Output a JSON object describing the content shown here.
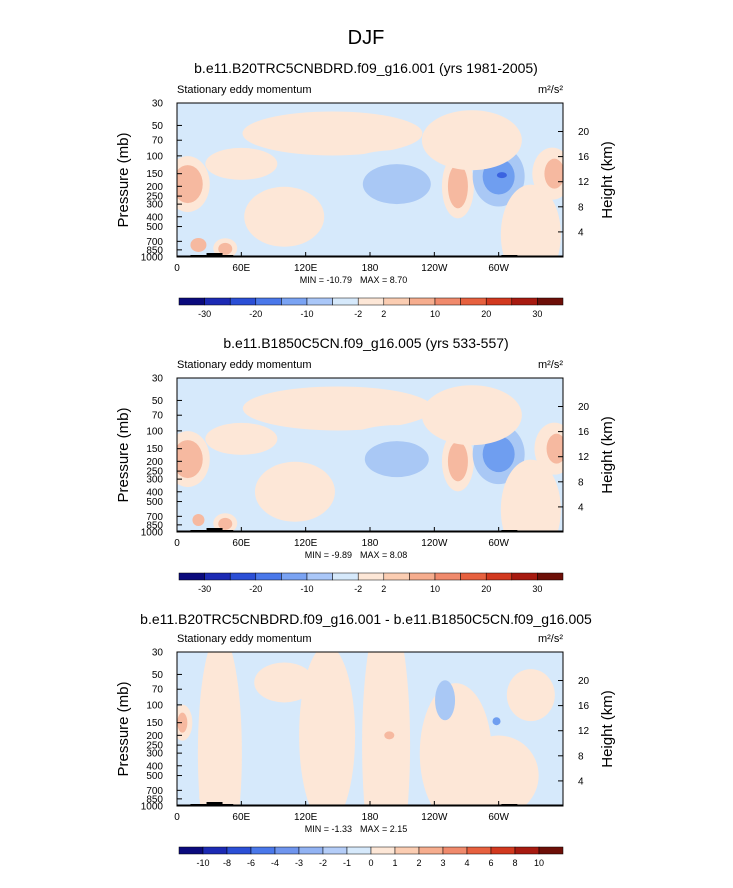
{
  "page": {
    "title": "DJF"
  },
  "colors": {
    "background": "#d6e9fb",
    "neg_light": "#d6e9fb",
    "pos_light": "#fde7d7",
    "neg_mid": "#a9c8f5",
    "neg_strong": "#6f9ef0",
    "neg_dark": "#3b63e0",
    "pos_mid": "#f6b9a0",
    "pos_strong": "#f08a6c",
    "topography": "#000000"
  },
  "chart_data": [
    {
      "type": "heatmap",
      "title": "b.e11.B20TRC5CNBDRD.f09_g16.001 (yrs 1981-2005)",
      "left_label": "Stationary eddy momentum",
      "units": "m²/s²",
      "ylabel": "Pressure (mb)",
      "ylabel_right": "Height (km)",
      "x_ticks": [
        "0",
        "60E",
        "120E",
        "180",
        "120W",
        "60W"
      ],
      "x_tick_lon": [
        0,
        60,
        120,
        180,
        240,
        300
      ],
      "xlim": [
        0,
        360
      ],
      "y_ticks": [
        "30",
        "50",
        "70",
        "100",
        "150",
        "200",
        "250",
        "300",
        "400",
        "500",
        "700",
        "850",
        "1000"
      ],
      "y_tick_values": [
        30,
        50,
        70,
        100,
        150,
        200,
        250,
        300,
        400,
        500,
        700,
        850,
        1000
      ],
      "ylim": [
        1000,
        30
      ],
      "log_scale": true,
      "height_ticks": [
        "20",
        "16",
        "12",
        "8",
        "4"
      ],
      "height_values": [
        20,
        16,
        12,
        8,
        4
      ],
      "stats": {
        "min": "MIN = -10.79",
        "max": "MAX =  8.70"
      },
      "colorbar": {
        "levels": [
          "-30",
          "-20",
          "-10",
          "-2",
          "2",
          "10",
          "20",
          "30"
        ],
        "colors": [
          "#0b0a7d",
          "#1c2ab4",
          "#2b4fd6",
          "#4a78ea",
          "#7aa3f3",
          "#aac7f8",
          "#d6e9fb",
          "#fde7d7",
          "#fbcdb2",
          "#f6ad8e",
          "#f08a6c",
          "#e7613f",
          "#d2391f",
          "#a71a10",
          "#6d0f08"
        ]
      }
    },
    {
      "type": "heatmap",
      "title": "b.e11.B1850C5CN.f09_g16.005 (yrs 533-557)",
      "left_label": "Stationary eddy momentum",
      "units": "m²/s²",
      "ylabel": "Pressure (mb)",
      "ylabel_right": "Height (km)",
      "x_ticks": [
        "0",
        "60E",
        "120E",
        "180",
        "120W",
        "60W"
      ],
      "x_tick_lon": [
        0,
        60,
        120,
        180,
        240,
        300
      ],
      "xlim": [
        0,
        360
      ],
      "y_ticks": [
        "30",
        "50",
        "70",
        "100",
        "150",
        "200",
        "250",
        "300",
        "400",
        "500",
        "700",
        "850",
        "1000"
      ],
      "y_tick_values": [
        30,
        50,
        70,
        100,
        150,
        200,
        250,
        300,
        400,
        500,
        700,
        850,
        1000
      ],
      "ylim": [
        1000,
        30
      ],
      "log_scale": true,
      "height_ticks": [
        "20",
        "16",
        "12",
        "8",
        "4"
      ],
      "height_values": [
        20,
        16,
        12,
        8,
        4
      ],
      "stats": {
        "min": "MIN = -9.89",
        "max": "MAX =  8.08"
      },
      "colorbar": {
        "levels": [
          "-30",
          "-20",
          "-10",
          "-2",
          "2",
          "10",
          "20",
          "30"
        ],
        "colors": [
          "#0b0a7d",
          "#1c2ab4",
          "#2b4fd6",
          "#4a78ea",
          "#7aa3f3",
          "#aac7f8",
          "#d6e9fb",
          "#fde7d7",
          "#fbcdb2",
          "#f6ad8e",
          "#f08a6c",
          "#e7613f",
          "#d2391f",
          "#a71a10",
          "#6d0f08"
        ]
      }
    },
    {
      "type": "heatmap",
      "title": "b.e11.B20TRC5CNBDRD.f09_g16.001 - b.e11.B1850C5CN.f09_g16.005",
      "left_label": "Stationary eddy momentum",
      "units": "m²/s²",
      "ylabel": "Pressure (mb)",
      "ylabel_right": "Height (km)",
      "x_ticks": [
        "0",
        "60E",
        "120E",
        "180",
        "120W",
        "60W"
      ],
      "x_tick_lon": [
        0,
        60,
        120,
        180,
        240,
        300
      ],
      "xlim": [
        0,
        360
      ],
      "y_ticks": [
        "30",
        "50",
        "70",
        "100",
        "150",
        "200",
        "250",
        "300",
        "400",
        "500",
        "700",
        "850",
        "1000"
      ],
      "y_tick_values": [
        30,
        50,
        70,
        100,
        150,
        200,
        250,
        300,
        400,
        500,
        700,
        850,
        1000
      ],
      "ylim": [
        1000,
        30
      ],
      "log_scale": true,
      "height_ticks": [
        "20",
        "16",
        "12",
        "8",
        "4"
      ],
      "height_values": [
        20,
        16,
        12,
        8,
        4
      ],
      "stats": {
        "min": "MIN = -1.33",
        "max": "MAX =  2.15"
      },
      "colorbar": {
        "levels": [
          "-10",
          "-8",
          "-6",
          "-4",
          "-3",
          "-2",
          "-1",
          "0",
          "1",
          "2",
          "3",
          "4",
          "6",
          "8",
          "10"
        ],
        "colors": [
          "#0b0a7d",
          "#1c2ab4",
          "#2b4fd6",
          "#4a78ea",
          "#6f95ee",
          "#92b3f3",
          "#b4cdf8",
          "#d6e9fb",
          "#fde7d7",
          "#fbcdb2",
          "#f6ad8e",
          "#f08a6c",
          "#e7613f",
          "#d2391f",
          "#a71a10",
          "#6d0f08"
        ]
      }
    }
  ]
}
